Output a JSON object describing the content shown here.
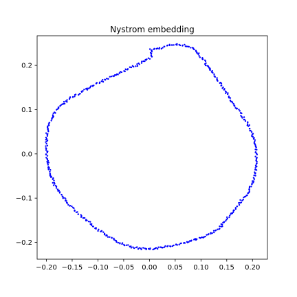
{
  "chart_data": {
    "type": "scatter",
    "title": "Nystrom embedding",
    "xlabel": "",
    "ylabel": "",
    "xlim": [
      -0.218,
      0.229
    ],
    "ylim": [
      -0.238,
      0.267
    ],
    "x_ticks": [
      -0.2,
      -0.15,
      -0.1,
      -0.05,
      0.0,
      0.05,
      0.1,
      0.15,
      0.2
    ],
    "x_tick_labels": [
      "−0.20",
      "−0.15",
      "−0.10",
      "−0.05",
      "0.00",
      "0.05",
      "0.10",
      "0.15",
      "0.20"
    ],
    "y_ticks": [
      0.2,
      0.1,
      0.0,
      -0.1,
      -0.2
    ],
    "y_tick_labels": [
      "0.2",
      "0.1",
      "0.0",
      "−0.1",
      "−0.2"
    ],
    "grid": false,
    "marker_color": "#0000ff",
    "series": [
      {
        "description_points": "points trace a closed ring; listed as [x, y] in data units",
        "points": [
          [
            0.003,
            0.235
          ],
          [
            0.015,
            0.238
          ],
          [
            0.025,
            0.24
          ],
          [
            0.035,
            0.245
          ],
          [
            0.045,
            0.247
          ],
          [
            0.055,
            0.247
          ],
          [
            0.065,
            0.246
          ],
          [
            0.075,
            0.243
          ],
          [
            0.082,
            0.24
          ],
          [
            0.09,
            0.232
          ],
          [
            0.098,
            0.222
          ],
          [
            0.105,
            0.212
          ],
          [
            0.112,
            0.2
          ],
          [
            0.12,
            0.188
          ],
          [
            0.128,
            0.175
          ],
          [
            0.135,
            0.162
          ],
          [
            0.148,
            0.14
          ],
          [
            0.158,
            0.12
          ],
          [
            0.168,
            0.105
          ],
          [
            0.178,
            0.09
          ],
          [
            0.19,
            0.07
          ],
          [
            0.2,
            0.045
          ],
          [
            0.205,
            0.02
          ],
          [
            0.207,
            0.0
          ],
          [
            0.207,
            -0.02
          ],
          [
            0.206,
            -0.04
          ],
          [
            0.203,
            -0.055
          ],
          [
            0.198,
            -0.07
          ],
          [
            0.19,
            -0.09
          ],
          [
            0.182,
            -0.1
          ],
          [
            0.175,
            -0.11
          ],
          [
            0.165,
            -0.128
          ],
          [
            0.155,
            -0.14
          ],
          [
            0.148,
            -0.15
          ],
          [
            0.14,
            -0.162
          ],
          [
            0.13,
            -0.172
          ],
          [
            0.12,
            -0.18
          ],
          [
            0.11,
            -0.185
          ],
          [
            0.098,
            -0.19
          ],
          [
            0.085,
            -0.195
          ],
          [
            0.072,
            -0.2
          ],
          [
            0.06,
            -0.203
          ],
          [
            0.045,
            -0.207
          ],
          [
            0.03,
            -0.21
          ],
          [
            0.015,
            -0.213
          ],
          [
            0.0,
            -0.215
          ],
          [
            -0.015,
            -0.214
          ],
          [
            -0.03,
            -0.212
          ],
          [
            -0.045,
            -0.207
          ],
          [
            -0.06,
            -0.2
          ],
          [
            -0.075,
            -0.19
          ],
          [
            -0.09,
            -0.178
          ],
          [
            -0.105,
            -0.168
          ],
          [
            -0.12,
            -0.152
          ],
          [
            -0.135,
            -0.138
          ],
          [
            -0.15,
            -0.122
          ],
          [
            -0.162,
            -0.105
          ],
          [
            -0.175,
            -0.088
          ],
          [
            -0.185,
            -0.068
          ],
          [
            -0.192,
            -0.045
          ],
          [
            -0.197,
            -0.02
          ],
          [
            -0.199,
            0.0
          ],
          [
            -0.2,
            0.02
          ],
          [
            -0.199,
            0.045
          ],
          [
            -0.195,
            0.065
          ],
          [
            -0.188,
            0.085
          ],
          [
            -0.18,
            0.1
          ],
          [
            -0.17,
            0.112
          ],
          [
            -0.158,
            0.122
          ],
          [
            -0.148,
            0.13
          ],
          [
            -0.135,
            0.138
          ],
          [
            -0.12,
            0.148
          ],
          [
            -0.105,
            0.158
          ],
          [
            -0.085,
            0.168
          ],
          [
            -0.07,
            0.176
          ],
          [
            -0.055,
            0.184
          ],
          [
            -0.04,
            0.193
          ],
          [
            -0.025,
            0.2
          ],
          [
            -0.01,
            0.21
          ],
          [
            0.003,
            0.218
          ]
        ]
      }
    ]
  }
}
